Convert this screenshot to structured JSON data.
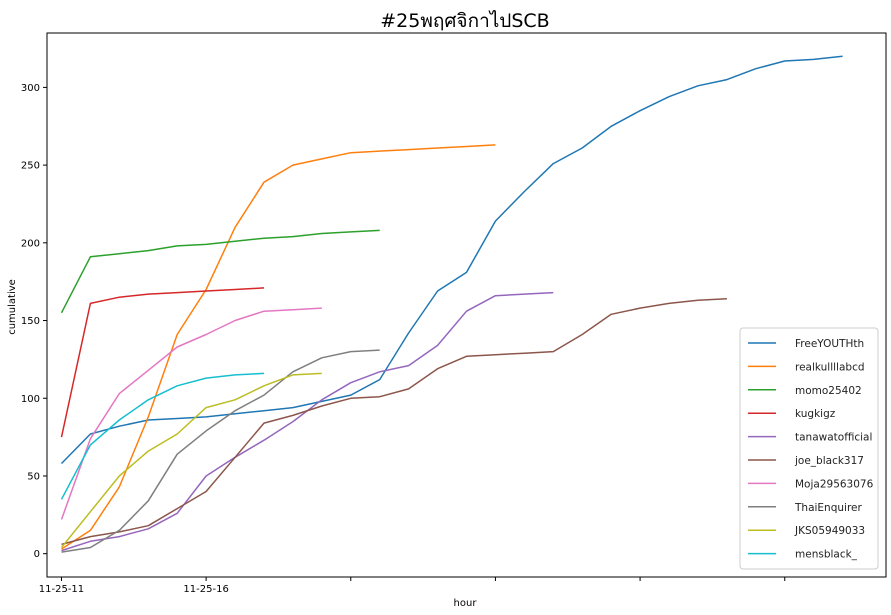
{
  "chart_data": {
    "type": "line",
    "title": "#25พฤศจิกาไปSCB",
    "xlabel": "hour",
    "ylabel": "cumulative",
    "xlim": [
      -0.5,
      28.5
    ],
    "ylim": [
      -15,
      335
    ],
    "x_ticks": [
      {
        "x": 0,
        "label": "11-25-11"
      },
      {
        "x": 5,
        "label": "11-25-16"
      },
      {
        "x": 10,
        "label": ""
      },
      {
        "x": 15,
        "label": ""
      },
      {
        "x": 20,
        "label": ""
      },
      {
        "x": 25,
        "label": ""
      }
    ],
    "y_ticks": [
      0,
      50,
      100,
      150,
      200,
      250,
      300
    ],
    "grid": false,
    "legend_position": "lower-right",
    "series": [
      {
        "name": "FreeYOUTHth",
        "color": "#1f77b4",
        "x": [
          0,
          1,
          2,
          3,
          4,
          5,
          6,
          7,
          8,
          9,
          10,
          11,
          12,
          13,
          14,
          15,
          16,
          17,
          18,
          19,
          20,
          21,
          22,
          23,
          24,
          25,
          26,
          27
        ],
        "y": [
          58,
          77,
          82,
          86,
          87,
          88,
          90,
          92,
          94,
          98,
          102,
          112,
          142,
          169,
          181,
          214,
          233,
          251,
          261,
          275,
          285,
          294,
          301,
          305,
          312,
          317,
          318,
          320
        ]
      },
      {
        "name": "realkullllabcd",
        "color": "#ff7f0e",
        "x": [
          0,
          1,
          2,
          3,
          4,
          5,
          6,
          7,
          8,
          9,
          10,
          11,
          12,
          13,
          14,
          15
        ],
        "y": [
          3,
          15,
          43,
          88,
          141,
          170,
          210,
          239,
          250,
          254,
          258,
          259,
          260,
          261,
          262,
          263
        ]
      },
      {
        "name": "momo25402",
        "color": "#2ca02c",
        "x": [
          0,
          1,
          2,
          3,
          4,
          5,
          6,
          7,
          8,
          9,
          10,
          11
        ],
        "y": [
          155,
          191,
          193,
          195,
          198,
          199,
          201,
          203,
          204,
          206,
          207,
          208
        ]
      },
      {
        "name": "kugkigz",
        "color": "#d62728",
        "x": [
          0,
          1,
          2,
          3,
          4,
          5,
          6,
          7
        ],
        "y": [
          75,
          161,
          165,
          167,
          168,
          169,
          170,
          171
        ]
      },
      {
        "name": "tanawatofficial",
        "color": "#9467bd",
        "x": [
          0,
          1,
          2,
          3,
          4,
          5,
          6,
          7,
          8,
          9,
          10,
          11,
          12,
          13,
          14,
          15,
          16,
          17
        ],
        "y": [
          2,
          8,
          11,
          16,
          26,
          50,
          62,
          73,
          85,
          99,
          110,
          117,
          121,
          134,
          156,
          166,
          167,
          168
        ]
      },
      {
        "name": "joe_black317",
        "color": "#8c564b",
        "x": [
          0,
          1,
          2,
          3,
          4,
          5,
          6,
          7,
          8,
          9,
          10,
          11,
          12,
          13,
          14,
          15,
          16,
          17,
          18,
          19,
          20,
          21,
          22,
          23
        ],
        "y": [
          6,
          11,
          14,
          18,
          29,
          40,
          62,
          84,
          89,
          95,
          100,
          101,
          106,
          119,
          127,
          128,
          129,
          130,
          141,
          154,
          158,
          161,
          163,
          164
        ]
      },
      {
        "name": "Moja29563076",
        "color": "#e377c2",
        "x": [
          0,
          1,
          2,
          3,
          4,
          5,
          6,
          7,
          8,
          9
        ],
        "y": [
          22,
          74,
          103,
          118,
          133,
          141,
          150,
          156,
          157,
          158
        ]
      },
      {
        "name": "ThaiEnquirer",
        "color": "#7f7f7f",
        "x": [
          0,
          1,
          2,
          3,
          4,
          5,
          6,
          7,
          8,
          9,
          10,
          11
        ],
        "y": [
          1,
          4,
          15,
          34,
          64,
          79,
          92,
          102,
          117,
          126,
          130,
          131
        ]
      },
      {
        "name": "JKS05949033",
        "color": "#bcbd22",
        "x": [
          0,
          1,
          2,
          3,
          4,
          5,
          6,
          7,
          8,
          9
        ],
        "y": [
          4,
          27,
          50,
          66,
          77,
          94,
          99,
          108,
          115,
          116
        ]
      },
      {
        "name": "mensblack_",
        "color": "#17becf",
        "x": [
          0,
          1,
          2,
          3,
          4,
          5,
          6,
          7
        ],
        "y": [
          35,
          70,
          86,
          99,
          108,
          113,
          115,
          116
        ]
      }
    ]
  }
}
